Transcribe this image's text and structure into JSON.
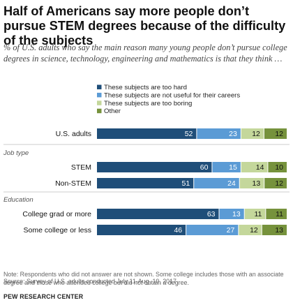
{
  "title": "Half of Americans say more people don’t pursue STEM degrees because of the difficulty of the subjects",
  "subtitle": "% of U.S. adults who say the main reason many young people don’t pursue college degrees in science, technology, engineering and mathematics is that they think …",
  "note": "Note: Respondents who did not answer are not shown. Some college includes those with an associate degree and those who attended college but did not obtain a degree.",
  "source": "Source: Survey of U.S. adults conducted July 11-Aug. 10, 2017.",
  "logo_text": "PEW RESEARCH CENTER",
  "chart_data": {
    "type": "bar",
    "orientation": "horizontal",
    "stacked": true,
    "legend_position": "top",
    "series": [
      {
        "name": "These subjects are too hard",
        "color": "#1f4e79"
      },
      {
        "name": "These subjects are not useful for their careers",
        "color": "#5b9bd5"
      },
      {
        "name": "These subjects are too boring",
        "color": "#c4d79b"
      },
      {
        "name": "Other",
        "color": "#76923c"
      }
    ],
    "groups": [
      {
        "label": "",
        "rows": [
          {
            "category": "U.S. adults",
            "values": [
              52,
              23,
              12,
              12
            ]
          }
        ]
      },
      {
        "label": "Job type",
        "rows": [
          {
            "category": "STEM",
            "values": [
              60,
              15,
              14,
              10
            ]
          },
          {
            "category": "Non-STEM",
            "values": [
              51,
              24,
              13,
              12
            ]
          }
        ]
      },
      {
        "label": "Education",
        "rows": [
          {
            "category": "College grad or more",
            "values": [
              63,
              13,
              11,
              11
            ]
          },
          {
            "category": "Some college or less",
            "values": [
              46,
              27,
              12,
              13
            ]
          }
        ]
      }
    ]
  }
}
